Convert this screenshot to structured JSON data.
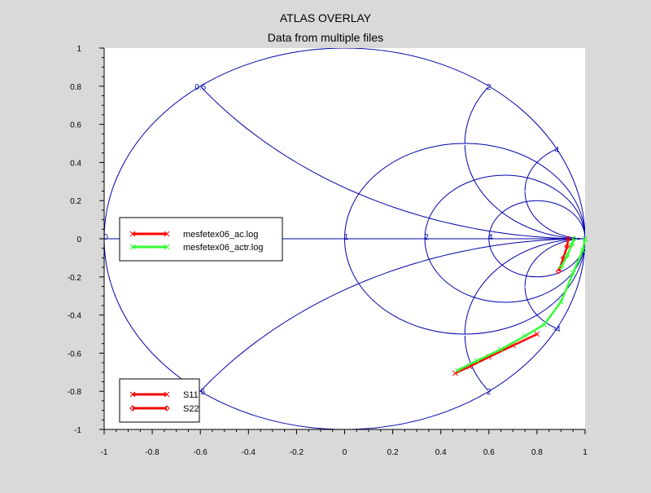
{
  "chart_data": {
    "type": "line",
    "title": "ATLAS OVERLAY",
    "subtitle": "Data from multiple files",
    "xlim": [
      -1,
      1
    ],
    "ylim": [
      -1,
      1
    ],
    "x_ticks": [
      "-1",
      "-0.8",
      "-0.6",
      "-0.4",
      "-0.2",
      "0",
      "0.2",
      "0.4",
      "0.6",
      "0.8",
      "1"
    ],
    "y_ticks": [
      "1",
      "0.8",
      "0.6",
      "0.4",
      "0.2",
      "0",
      "-0.2",
      "-0.4",
      "-0.6",
      "-0.8",
      "-1"
    ],
    "smith_grid": {
      "resistance_circles": [
        0,
        1,
        2,
        4
      ],
      "reactance_arcs": [
        0.5,
        2,
        4
      ],
      "resistance_labels": [
        {
          "text": "0",
          "r": 0
        },
        {
          "text": "1",
          "r": 1
        },
        {
          "text": "2",
          "r": 2
        },
        {
          "text": "4",
          "r": 4
        }
      ],
      "reactance_labels": [
        {
          "text": "0.5",
          "x": 0.5
        },
        {
          "text": "2",
          "x": 2
        },
        {
          "text": "4",
          "x": 4
        },
        {
          "text": "-.5",
          "x": -0.5
        },
        {
          "text": "2",
          "x": -2
        },
        {
          "text": "-4",
          "x": -4
        }
      ],
      "color": "#0000aa"
    },
    "series_legend": [
      {
        "name": "mesfetex06_ac.log",
        "color": "#ff0000"
      },
      {
        "name": "mesfetex06_actr.log",
        "color": "#33ff33"
      }
    ],
    "parameter_legend": [
      {
        "name": "S11",
        "marker": "x",
        "color": "#ee0000"
      },
      {
        "name": "S22",
        "marker": "diamond",
        "color": "#ee0000"
      }
    ],
    "series": [
      {
        "file": "mesfetex06_ac.log",
        "param": "S11",
        "color": "#ff0000",
        "points": [
          [
            0.46,
            -0.705
          ],
          [
            0.52,
            -0.67
          ],
          [
            0.6,
            -0.62
          ],
          [
            0.7,
            -0.56
          ],
          [
            0.8,
            -0.5
          ]
        ]
      },
      {
        "file": "mesfetex06_actr.log",
        "param": "S11",
        "color": "#33ff33",
        "points": [
          [
            0.47,
            -0.69
          ],
          [
            0.55,
            -0.64
          ],
          [
            0.65,
            -0.58
          ],
          [
            0.75,
            -0.51
          ],
          [
            0.83,
            -0.45
          ],
          [
            0.9,
            -0.33
          ],
          [
            0.95,
            -0.18
          ],
          [
            0.99,
            -0.06
          ],
          [
            1.0,
            0.0
          ]
        ]
      },
      {
        "file": "mesfetex06_ac.log",
        "param": "S22",
        "color": "#ff0000",
        "points": [
          [
            0.89,
            -0.17
          ],
          [
            0.91,
            -0.1
          ],
          [
            0.925,
            -0.04
          ],
          [
            0.93,
            0.0
          ]
        ]
      },
      {
        "file": "mesfetex06_actr.log",
        "param": "S22",
        "color": "#33ff33",
        "points": [
          [
            0.9,
            -0.15
          ],
          [
            0.925,
            -0.09
          ],
          [
            0.945,
            -0.03
          ],
          [
            0.955,
            0.0
          ]
        ]
      }
    ]
  }
}
